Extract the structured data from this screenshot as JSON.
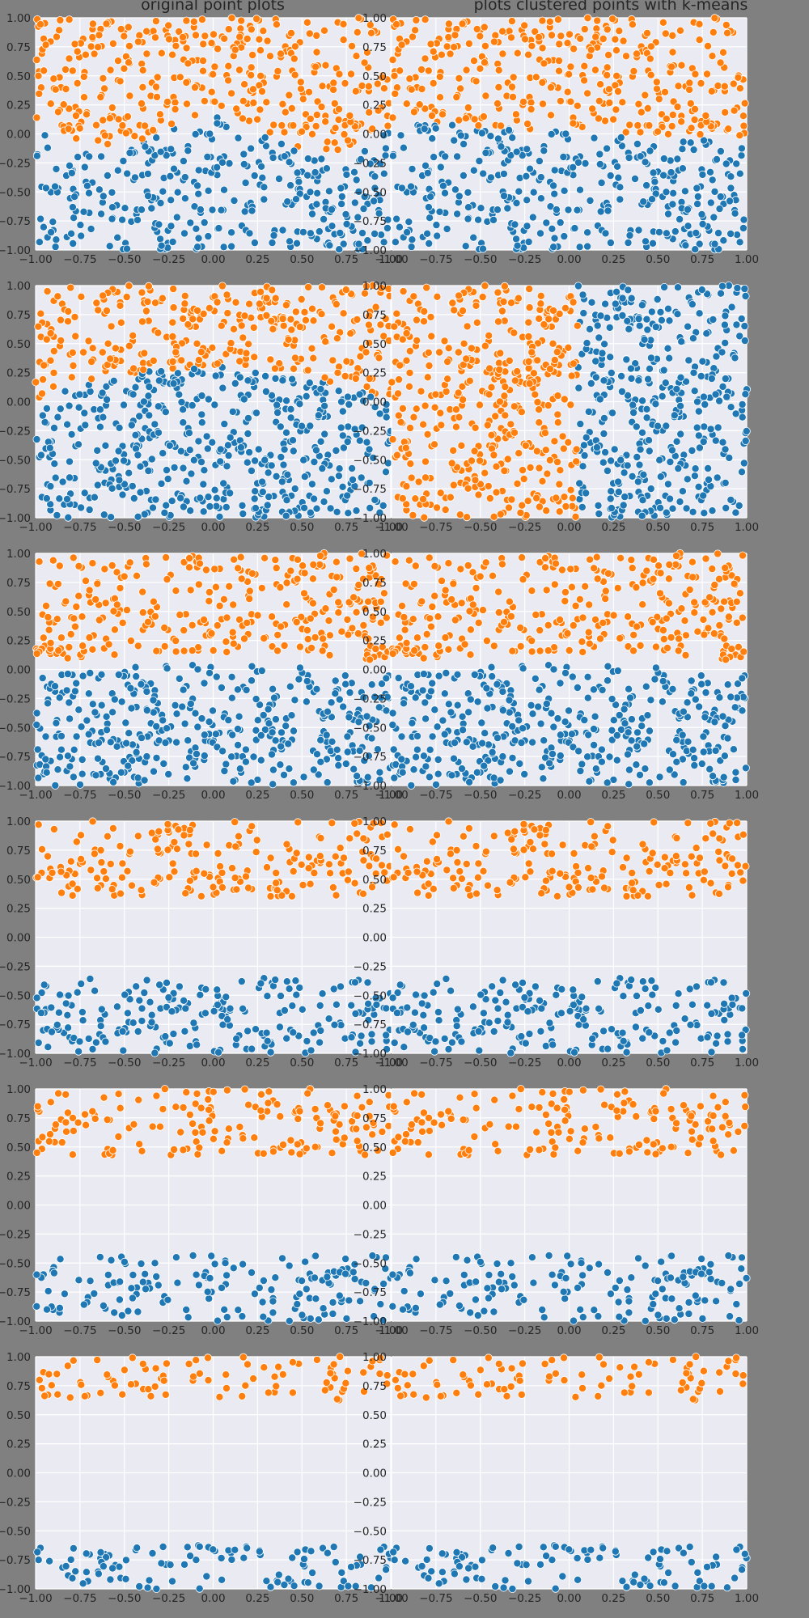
{
  "titles": {
    "left": "original point plots",
    "right": "plots clustered points with k-means"
  },
  "colors": {
    "figure_background": "#808080",
    "axes_background": "#eaeaf2",
    "grid": "#ffffff",
    "cluster_0": "#1f77b4",
    "cluster_1": "#ff7f0e"
  },
  "chart_data": [
    {
      "type": "scatter",
      "row": 1,
      "column": "original",
      "title": "original point plots",
      "xlim": [
        -1,
        1
      ],
      "ylim": [
        -1,
        1
      ],
      "grid": true,
      "boundary": "wavy",
      "separation": 0.0,
      "amplitude": 0.18,
      "n_points": 700,
      "labeling": "true"
    },
    {
      "type": "scatter",
      "row": 1,
      "column": "k-means",
      "title": "plots clustered points with k-means",
      "xlim": [
        -1,
        1
      ],
      "ylim": [
        -1,
        1
      ],
      "grid": true,
      "boundary": "wavy",
      "separation": 0.0,
      "amplitude": 0.18,
      "n_points": 700,
      "labeling": "kmeans_horizontal"
    },
    {
      "type": "scatter",
      "row": 2,
      "column": "original",
      "xlim": [
        -1,
        1
      ],
      "ylim": [
        -1,
        1
      ],
      "grid": true,
      "boundary": "arch",
      "separation": 0.0,
      "arch_height": 0.3,
      "n_points": 800,
      "labeling": "true"
    },
    {
      "type": "scatter",
      "row": 2,
      "column": "k-means",
      "xlim": [
        -1,
        1
      ],
      "ylim": [
        -1,
        1
      ],
      "grid": true,
      "boundary": "arch",
      "separation": 0.0,
      "arch_height": 0.3,
      "n_points": 800,
      "labeling": "kmeans_vertical",
      "split_x": 0.05
    },
    {
      "type": "scatter",
      "row": 3,
      "column": "original",
      "xlim": [
        -1,
        1
      ],
      "ylim": [
        -1,
        1
      ],
      "grid": true,
      "boundary": "arch",
      "separation": 0.1,
      "arch_height": 0.1,
      "n_points": 700,
      "labeling": "true"
    },
    {
      "type": "scatter",
      "row": 3,
      "column": "k-means",
      "xlim": [
        -1,
        1
      ],
      "ylim": [
        -1,
        1
      ],
      "grid": true,
      "boundary": "arch",
      "separation": 0.1,
      "arch_height": 0.1,
      "n_points": 700,
      "labeling": "true"
    },
    {
      "type": "scatter",
      "row": 4,
      "column": "original",
      "xlim": [
        -1,
        1
      ],
      "ylim": [
        -1,
        1
      ],
      "grid": true,
      "boundary": "arch",
      "separation": 0.7,
      "arch_height": 0.0,
      "n_points": 420,
      "labeling": "true"
    },
    {
      "type": "scatter",
      "row": 4,
      "column": "k-means",
      "xlim": [
        -1,
        1
      ],
      "ylim": [
        -1,
        1
      ],
      "grid": true,
      "boundary": "arch",
      "separation": 0.7,
      "arch_height": 0.0,
      "n_points": 420,
      "labeling": "true"
    },
    {
      "type": "scatter",
      "row": 5,
      "column": "original",
      "xlim": [
        -1,
        1
      ],
      "ylim": [
        -1,
        1
      ],
      "grid": true,
      "boundary": "arch",
      "separation": 0.85,
      "arch_height": 0.0,
      "n_points": 320,
      "labeling": "true"
    },
    {
      "type": "scatter",
      "row": 5,
      "column": "k-means",
      "xlim": [
        -1,
        1
      ],
      "ylim": [
        -1,
        1
      ],
      "grid": true,
      "boundary": "arch",
      "separation": 0.85,
      "arch_height": 0.0,
      "n_points": 320,
      "labeling": "true"
    },
    {
      "type": "scatter",
      "row": 6,
      "column": "original",
      "xlim": [
        -1,
        1
      ],
      "ylim": [
        -1,
        1
      ],
      "grid": true,
      "boundary": "arch",
      "separation": 1.25,
      "arch_height": 0.0,
      "n_points": 200,
      "labeling": "true"
    },
    {
      "type": "scatter",
      "row": 6,
      "column": "k-means",
      "xlim": [
        -1,
        1
      ],
      "ylim": [
        -1,
        1
      ],
      "grid": true,
      "boundary": "arch",
      "separation": 1.25,
      "arch_height": 0.0,
      "n_points": 200,
      "labeling": "true"
    }
  ],
  "axes": {
    "x_ticks": [
      "−1.00",
      "−0.75",
      "−0.50",
      "−0.25",
      "0.00",
      "0.25",
      "0.50",
      "0.75",
      "1.00"
    ],
    "y_ticks": [
      "1.00",
      "0.75",
      "0.50",
      "0.25",
      "0.00",
      "−0.25",
      "−0.50",
      "−0.75",
      "−1.00"
    ]
  }
}
